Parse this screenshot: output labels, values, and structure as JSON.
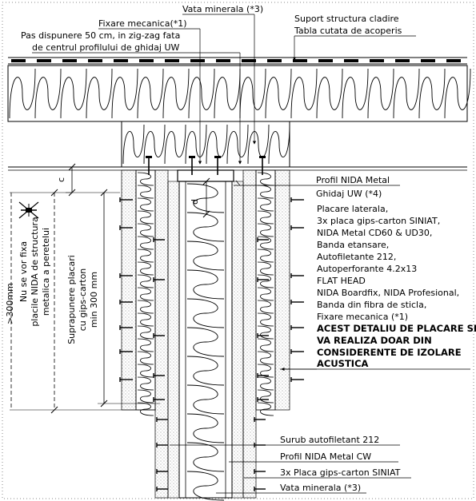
{
  "labels": {
    "fixare_mecanica_top": "Fixare mecanica(*1)",
    "vata_minerala_top": "Vata minerala (*3)",
    "pas_dispunere_1": "Pas dispunere 50 cm, in zig-zag fata",
    "pas_dispunere_2": "de centrul profilului de ghidaj UW",
    "suport_1": "Suport structura cladire",
    "suport_2": "Tabla cutata de acoperis",
    "profil_nida": "Profil NIDA Metal",
    "ghidaj_uw": "Ghidaj UW (*4)",
    "dim_c": "c",
    "dim_d": "d",
    "placare": [
      "Placare laterala,",
      "3x placa gips-carton SINIAT,",
      "NIDA Metal CD60 & UD30,",
      "Banda etansare,",
      "Autofiletante 212,",
      "Autoperforante 4.2x13",
      "FLAT HEAD",
      "NIDA Boardfix, NIDA Profesional,",
      "Banda din fibra de sticla,",
      "Fixare mecanica (*1)"
    ],
    "acest_detaliu": [
      "ACEST DETALIU DE PLACARE SE",
      "VA REALIZA DOAR DIN",
      "CONSIDERENTE DE IZOLARE",
      "ACUSTICA"
    ],
    "surub": "Surub autofiletant 212",
    "profil_cw": "Profil NIDA Metal CW",
    "placa_3x": "3x Placa gips-carton SINIAT",
    "vata_bottom": "Vata minerala (*3)",
    "suprapunere": [
      "Suprapunere placari",
      "cu gips-carton",
      "min 300 mm"
    ],
    "nu_se_vor": [
      "Nu se vor fixa",
      "placile NIDA de structura",
      "metalica a peretelui"
    ],
    "min_300": ">300mm"
  },
  "colors": {
    "line": "#000000",
    "hatch": "#555555",
    "background": "#ffffff",
    "dots": "#888888"
  },
  "icons": [
    "no-screw-icon"
  ]
}
